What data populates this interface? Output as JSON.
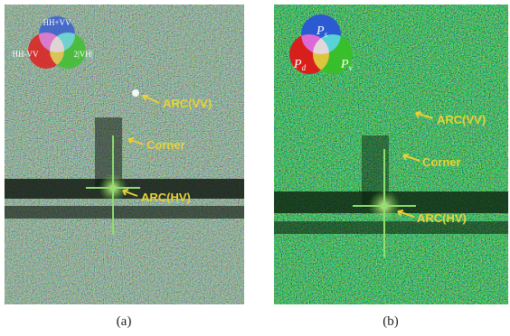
{
  "panels": [
    {
      "caption": "(a)",
      "legend": [
        "HH+VV",
        "HH-VV",
        "2|VH|"
      ],
      "annotations": [
        "ARC(VV)",
        "Corner",
        "ARC(HV)"
      ]
    },
    {
      "caption": "(b)",
      "legend": [
        {
          "base": "P",
          "sub": "s"
        },
        {
          "base": "P",
          "sub": "d"
        },
        {
          "base": "P",
          "sub": "v"
        }
      ],
      "annotations": [
        "ARC(VV)",
        "Corner",
        "ARC(HV)"
      ]
    }
  ]
}
